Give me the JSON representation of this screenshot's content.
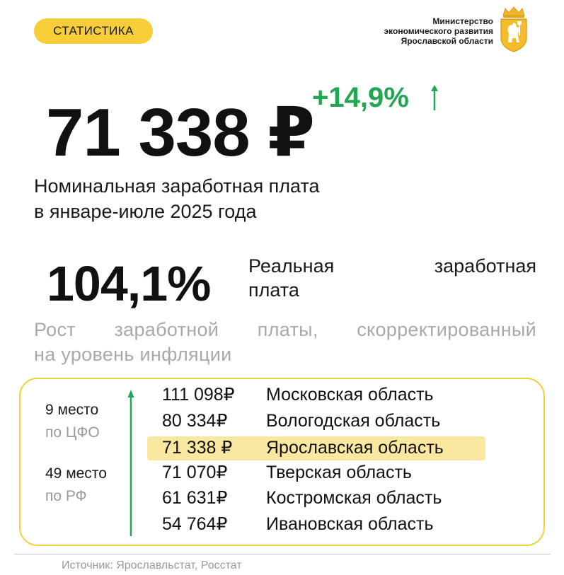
{
  "header": {
    "tag_label": "СТАТИСТИКА",
    "ministry_lines": [
      "Министерство",
      "экономического развития",
      "Ярославской области"
    ],
    "emblem_icon": "yaroslavl-coat-of-arms-icon"
  },
  "headline": {
    "value": "71 338 ₽",
    "growth": "+14,9%",
    "growth_color": "#22a653",
    "description_lines": [
      "Номинальная заработная плата",
      "в январе-июле 2025 года"
    ]
  },
  "real_wage": {
    "value": "104,1%",
    "label_lines": [
      "Реальная заработная",
      "плата"
    ],
    "note_lines": [
      "Рост заработной платы, скорректированный",
      "на уровень инфляции"
    ]
  },
  "ranking": {
    "cfo_place": "9 место",
    "cfo_scope": "по ЦФО",
    "rf_place": "49 место",
    "rf_scope": "по РФ",
    "accent_color": "#f3cf3a",
    "rows": [
      {
        "amount": "111 098₽",
        "region": "Московская область",
        "highlight": false
      },
      {
        "amount": "80 334₽",
        "region": "Вологодская область",
        "highlight": false
      },
      {
        "amount": "71 338 ₽",
        "region": "Ярославская область",
        "highlight": true
      },
      {
        "amount": "71 070₽",
        "region": "Тверская область",
        "highlight": false
      },
      {
        "amount": "61 631₽",
        "region": "Костромская область",
        "highlight": false
      },
      {
        "amount": "54 764₽",
        "region": "Ивановская область",
        "highlight": false
      }
    ]
  },
  "footer": {
    "source": "Источник: Ярославльстат, Росстат"
  }
}
